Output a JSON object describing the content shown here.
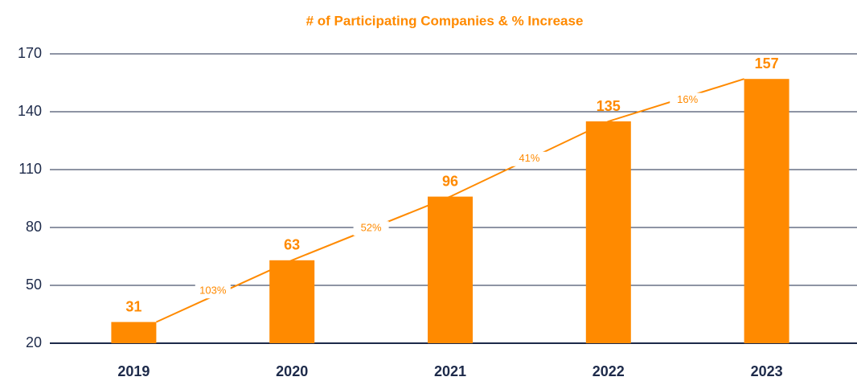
{
  "chart_data": {
    "type": "bar",
    "title": "# of Participating Companies & % Increase",
    "categories": [
      "2019",
      "2020",
      "2021",
      "2022",
      "2023"
    ],
    "values": [
      31,
      63,
      96,
      135,
      157
    ],
    "color": "#ff8a00",
    "ylim": [
      20,
      170
    ],
    "yticks": [
      20,
      50,
      80,
      110,
      140,
      170
    ],
    "grid": true,
    "increase": {
      "values": [
        103,
        52,
        41,
        16
      ],
      "value_labels": [
        "103%",
        "52%",
        "41%",
        "16%"
      ]
    }
  }
}
